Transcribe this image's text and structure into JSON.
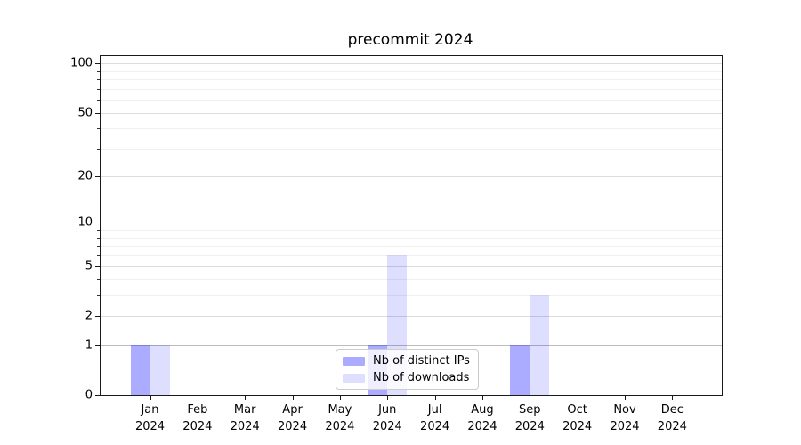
{
  "title": "precommit 2024",
  "legend": {
    "items": [
      {
        "label": "Nb of distinct IPs",
        "color": "rgba(0,0,255,0.33)"
      },
      {
        "label": "Nb of downloads",
        "color": "rgba(0,0,255,0.13)"
      }
    ]
  },
  "chart_data": {
    "type": "bar",
    "title": "precommit 2024",
    "xlabel": "",
    "ylabel": "",
    "y_scale": "log1p",
    "ylim": [
      0,
      111
    ],
    "grid": true,
    "legend_position": "lower center-right inside plot",
    "categories": [
      {
        "month": "Jan",
        "year": "2024"
      },
      {
        "month": "Feb",
        "year": "2024"
      },
      {
        "month": "Mar",
        "year": "2024"
      },
      {
        "month": "Apr",
        "year": "2024"
      },
      {
        "month": "May",
        "year": "2024"
      },
      {
        "month": "Jun",
        "year": "2024"
      },
      {
        "month": "Jul",
        "year": "2024"
      },
      {
        "month": "Aug",
        "year": "2024"
      },
      {
        "month": "Sep",
        "year": "2024"
      },
      {
        "month": "Oct",
        "year": "2024"
      },
      {
        "month": "Nov",
        "year": "2024"
      },
      {
        "month": "Dec",
        "year": "2024"
      }
    ],
    "series": [
      {
        "name": "Nb of distinct IPs",
        "color": "rgba(0,0,255,0.33)",
        "values": [
          1,
          0,
          0,
          0,
          0,
          1,
          0,
          0,
          1,
          0,
          0,
          0
        ]
      },
      {
        "name": "Nb of downloads",
        "color": "rgba(0,0,255,0.13)",
        "values": [
          1,
          0,
          0,
          0,
          0,
          6,
          0,
          0,
          3,
          0,
          0,
          0
        ]
      }
    ],
    "y_major_ticks": [
      {
        "label": "100",
        "value": 100
      },
      {
        "label": "50",
        "value": 50
      },
      {
        "label": "20",
        "value": 20
      },
      {
        "label": "10",
        "value": 10
      },
      {
        "label": "5",
        "value": 5
      },
      {
        "label": "2",
        "value": 2
      },
      {
        "label": "1",
        "value": 1
      },
      {
        "label": "0",
        "value": 0
      }
    ],
    "y_minor_values": [
      3,
      4,
      6,
      7,
      8,
      9,
      30,
      40,
      60,
      70,
      80,
      90
    ]
  }
}
